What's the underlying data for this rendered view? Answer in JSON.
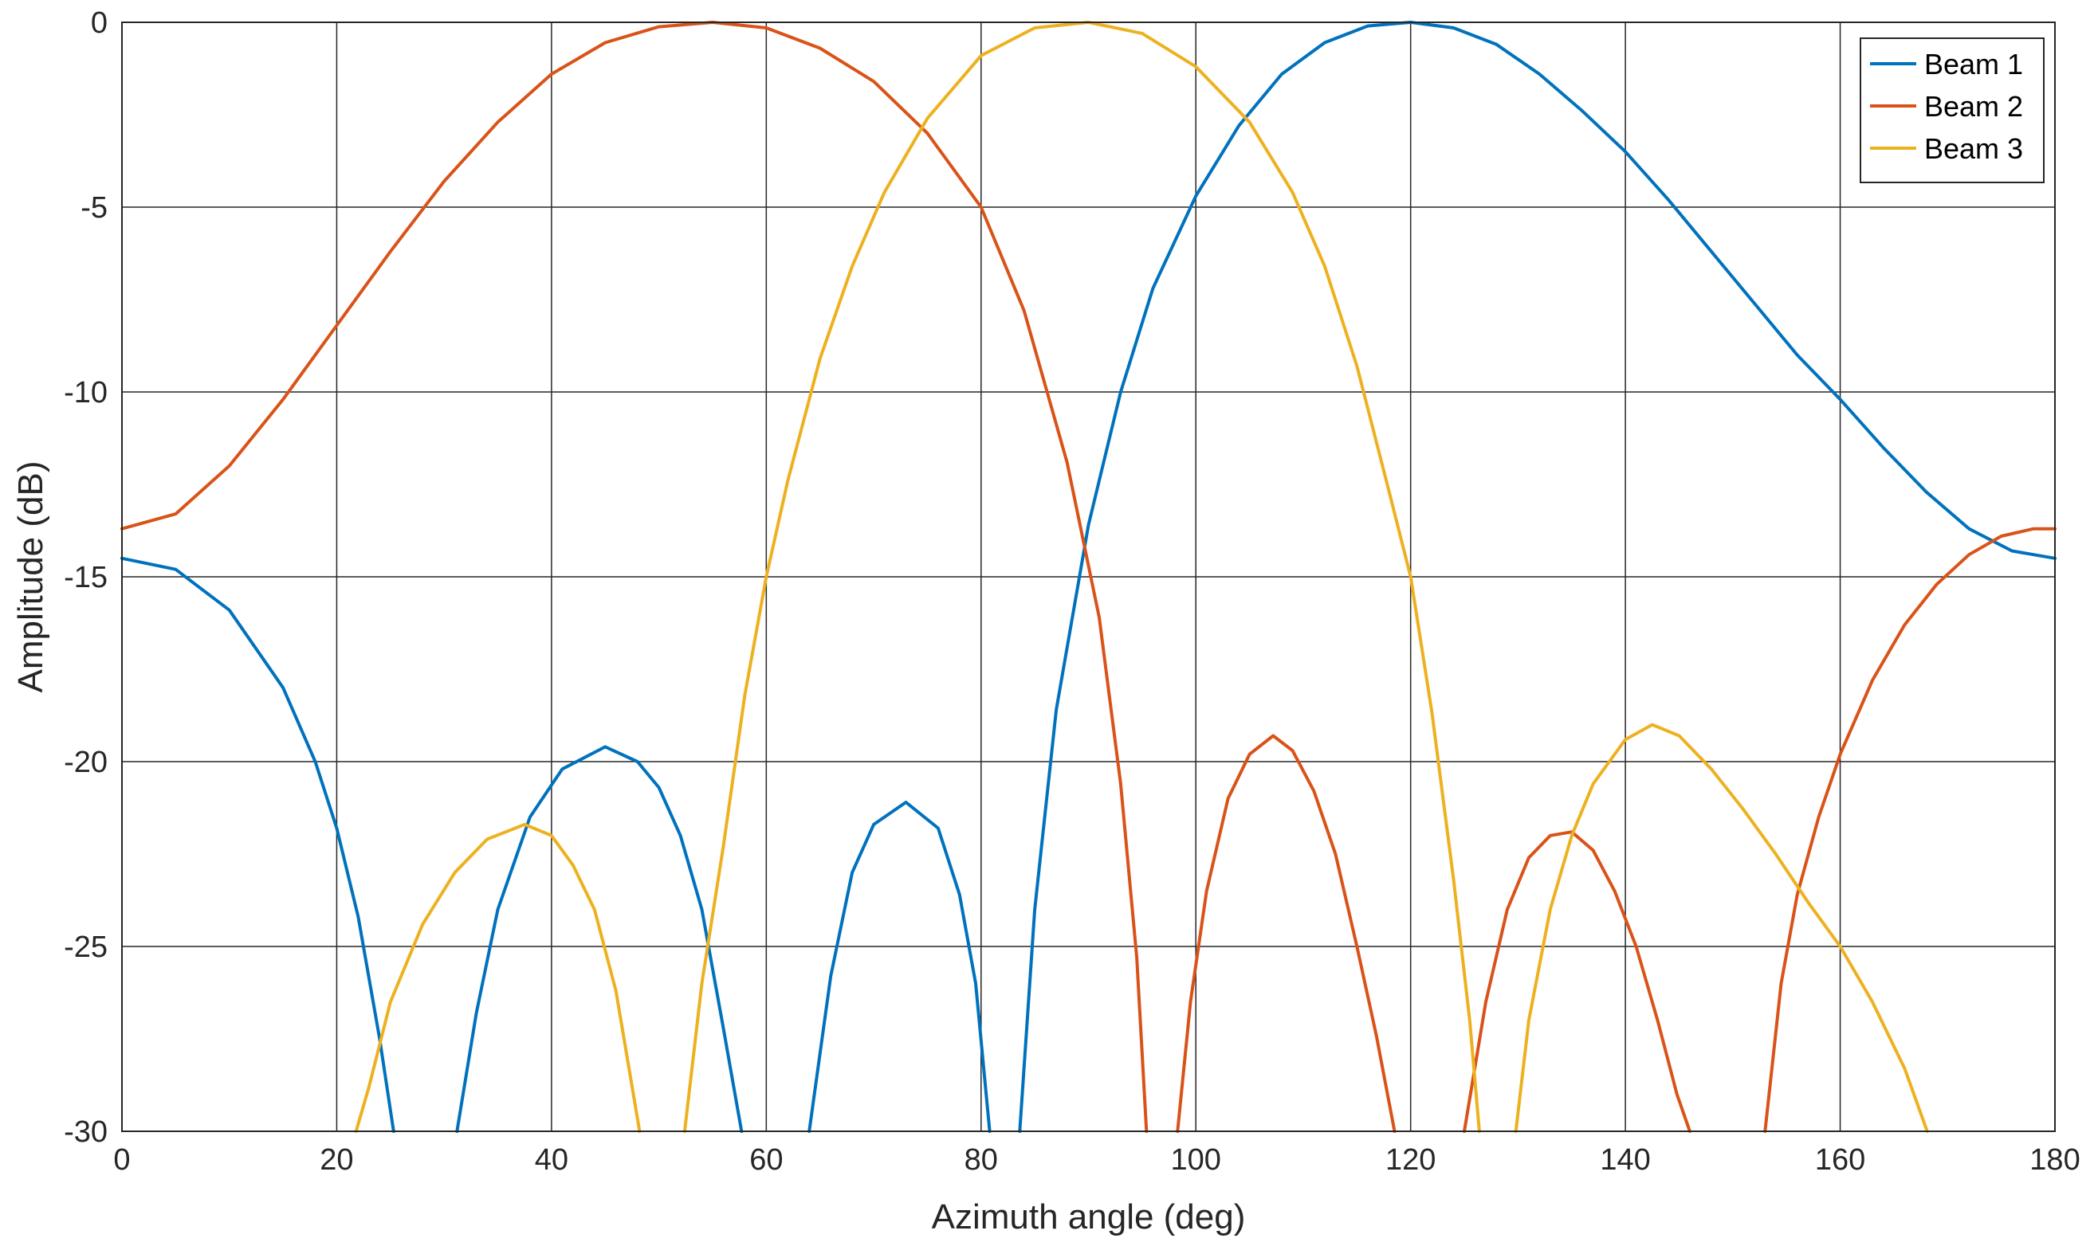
{
  "chart_data": {
    "type": "line",
    "title": "",
    "xlabel": "Azimuth angle (deg)",
    "ylabel": "Amplitude (dB)",
    "xlim": [
      0,
      180
    ],
    "ylim": [
      -30,
      0
    ],
    "xticks": [
      0,
      20,
      40,
      60,
      80,
      100,
      120,
      140,
      160,
      180
    ],
    "yticks": [
      -30,
      -25,
      -20,
      -15,
      -10,
      -5,
      0
    ],
    "grid": true,
    "legend_position": "top-right",
    "series": [
      {
        "name": "Beam 1",
        "color": "#0072BD",
        "x": [
          0,
          5,
          10,
          15,
          18,
          20,
          22,
          24,
          25.3,
          null,
          31.2,
          33,
          35,
          38,
          41,
          45,
          48,
          50,
          52,
          54,
          56,
          57.7,
          null,
          64,
          66,
          68,
          70,
          73,
          76,
          78,
          79.5,
          80.8,
          null,
          83.6,
          85,
          87,
          90,
          93,
          96,
          100,
          104,
          108,
          112,
          116,
          120,
          124,
          128,
          132,
          136,
          140,
          144,
          148,
          152,
          156,
          160,
          164,
          168,
          172,
          176,
          180
        ],
        "y": [
          -14.5,
          -14.8,
          -15.9,
          -18.0,
          -20.0,
          -21.8,
          -24.2,
          -27.5,
          -30,
          null,
          -30,
          -26.8,
          -24.0,
          -21.5,
          -20.2,
          -19.6,
          -20.0,
          -20.7,
          -22.0,
          -24.0,
          -27.2,
          -30,
          null,
          -30,
          -25.8,
          -23.0,
          -21.7,
          -21.1,
          -21.8,
          -23.6,
          -26.0,
          -30,
          null,
          -30,
          -24.0,
          -18.6,
          -13.6,
          -10.0,
          -7.2,
          -4.7,
          -2.8,
          -1.4,
          -0.55,
          -0.1,
          0,
          -0.15,
          -0.6,
          -1.4,
          -2.4,
          -3.5,
          -4.8,
          -6.2,
          -7.6,
          -9.0,
          -10.2,
          -11.5,
          -12.7,
          -13.7,
          -14.3,
          -14.5
        ]
      },
      {
        "name": "Beam 2",
        "color": "#D95319",
        "x": [
          0,
          5,
          10,
          15,
          20,
          25,
          30,
          35,
          40,
          45,
          50,
          55,
          60,
          65,
          70,
          75,
          80,
          84,
          88,
          91,
          93,
          94.5,
          95.4,
          null,
          98.3,
          99.5,
          101,
          103,
          105,
          107.2,
          109,
          111,
          113,
          115,
          116.8,
          118.5,
          null,
          125,
          127,
          129,
          131,
          133,
          135,
          137,
          139,
          141,
          143,
          144.8,
          146,
          null,
          153,
          154.5,
          156,
          158,
          160,
          163,
          166,
          169,
          172,
          175,
          178,
          180
        ],
        "y": [
          -13.7,
          -13.3,
          -12.0,
          -10.2,
          -8.2,
          -6.2,
          -4.3,
          -2.7,
          -1.4,
          -0.55,
          -0.12,
          0,
          -0.15,
          -0.7,
          -1.6,
          -3.0,
          -5.0,
          -7.8,
          -11.9,
          -16.1,
          -20.6,
          -25.3,
          -30,
          null,
          -30,
          -26.5,
          -23.5,
          -21.0,
          -19.8,
          -19.3,
          -19.7,
          -20.8,
          -22.5,
          -25.0,
          -27.4,
          -30,
          null,
          -30,
          -26.5,
          -24.0,
          -22.6,
          -22.0,
          -21.9,
          -22.4,
          -23.5,
          -25.0,
          -27.0,
          -29.0,
          -30,
          null,
          -30,
          -26.0,
          -23.6,
          -21.5,
          -19.8,
          -17.8,
          -16.3,
          -15.2,
          -14.4,
          -13.9,
          -13.7,
          -13.7
        ]
      },
      {
        "name": "Beam 3",
        "color": "#EDB120",
        "x": [
          21.8,
          23,
          25,
          28,
          31,
          34,
          37.5,
          40,
          42,
          44,
          46,
          48.2,
          null,
          52.4,
          54,
          56,
          58,
          60,
          62,
          65,
          68,
          71,
          75,
          80,
          85,
          90,
          95,
          100,
          105,
          109,
          112,
          115,
          118,
          120,
          122,
          124,
          125.5,
          126.4,
          null,
          129.8,
          131,
          133,
          135,
          137,
          140,
          142.5,
          145,
          148,
          151,
          154,
          157,
          160,
          163,
          166,
          168.1
        ],
        "y": [
          -30,
          -28.8,
          -26.5,
          -24.4,
          -23.0,
          -22.1,
          -21.7,
          -22.0,
          -22.8,
          -24.0,
          -26.2,
          -30,
          null,
          -30,
          -26.0,
          -22.3,
          -18.2,
          -15.0,
          -12.4,
          -9.1,
          -6.6,
          -4.6,
          -2.6,
          -0.9,
          -0.15,
          0,
          -0.3,
          -1.2,
          -2.7,
          -4.6,
          -6.6,
          -9.3,
          -12.7,
          -15.0,
          -18.7,
          -23.2,
          -27.0,
          -30,
          null,
          -30,
          -27.0,
          -24.0,
          -22.0,
          -20.6,
          -19.4,
          -19.0,
          -19.3,
          -20.2,
          -21.3,
          -22.5,
          -23.8,
          -25.0,
          -26.5,
          -28.3,
          -30
        ]
      }
    ]
  }
}
